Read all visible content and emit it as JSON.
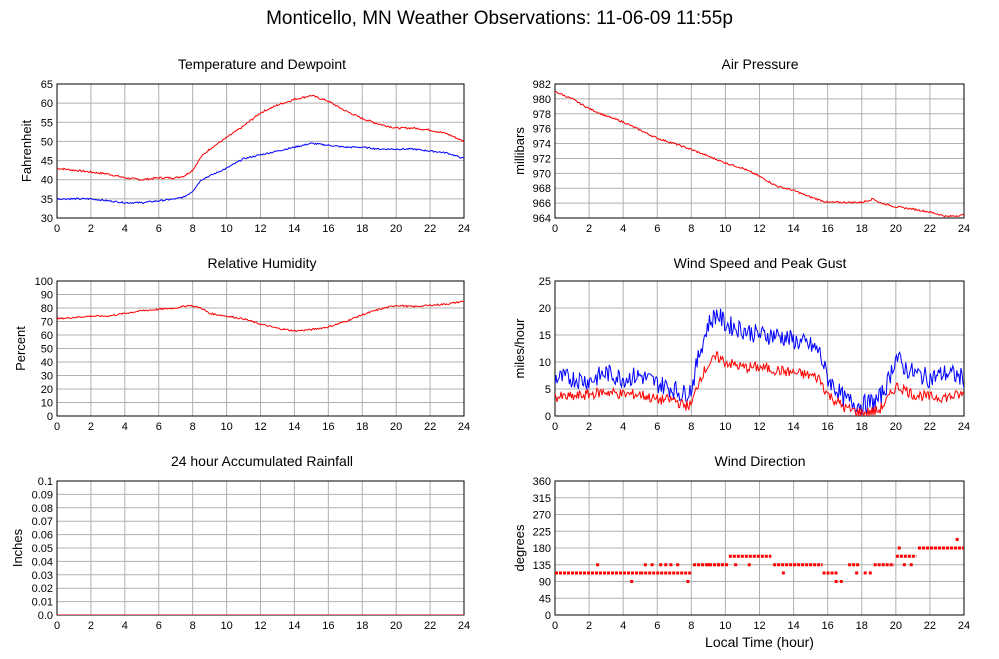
{
  "page": {
    "title": "Monticello, MN Weather Observations: 11-06-09 11:55p",
    "x_axis_caption": "Local Time (hour)"
  },
  "chart_data": [
    {
      "id": "temp",
      "type": "line",
      "title": "Temperature and Dewpoint",
      "ylabel": "Fahrenheit",
      "xlabel": "",
      "xlim": [
        0,
        24
      ],
      "ylim": [
        30,
        65
      ],
      "xticks": [
        0,
        2,
        4,
        6,
        8,
        10,
        12,
        14,
        16,
        18,
        20,
        22,
        24
      ],
      "yticks": [
        30,
        35,
        40,
        45,
        50,
        55,
        60,
        65
      ],
      "ytick_labels": [
        "30",
        "35",
        "40",
        "45",
        "50",
        "55",
        "60",
        "65"
      ],
      "grid": true,
      "series": [
        {
          "color": "#ff0000",
          "noise": 0.25,
          "x": [
            0,
            1,
            2,
            3,
            4,
            5,
            6,
            7,
            7.5,
            8,
            8.5,
            9,
            10,
            11,
            12,
            13,
            14,
            15,
            16,
            17,
            18,
            19,
            20,
            21,
            22,
            23,
            24
          ],
          "y": [
            43,
            42.5,
            42,
            41.5,
            40.5,
            40,
            40.5,
            40.5,
            41,
            42.5,
            46,
            48,
            51,
            54,
            57.5,
            59.5,
            61,
            62,
            60.5,
            58,
            56,
            54.5,
            53.5,
            53.5,
            53,
            52,
            50
          ]
        },
        {
          "color": "#0000ff",
          "noise": 0.2,
          "x": [
            0,
            1,
            2,
            3,
            4,
            5,
            6,
            7,
            7.5,
            8,
            8.5,
            9,
            10,
            11,
            12,
            13,
            14,
            15,
            16,
            17,
            18,
            19,
            20,
            21,
            22,
            23,
            24
          ],
          "y": [
            35,
            35,
            35,
            34.5,
            34,
            34,
            34.5,
            35,
            35.5,
            37,
            40,
            41,
            43,
            45.5,
            46.5,
            47.5,
            48.5,
            49.5,
            49,
            48.5,
            48.5,
            48,
            48,
            48,
            47.5,
            47,
            45.5
          ]
        }
      ]
    },
    {
      "id": "pressure",
      "type": "line",
      "title": "Air Pressure",
      "ylabel": "millibars",
      "xlabel": "",
      "xlim": [
        0,
        24
      ],
      "ylim": [
        964,
        982
      ],
      "xticks": [
        0,
        2,
        4,
        6,
        8,
        10,
        12,
        14,
        16,
        18,
        20,
        22,
        24
      ],
      "yticks": [
        964,
        966,
        968,
        970,
        972,
        974,
        976,
        978,
        980,
        982
      ],
      "ytick_labels": [
        "964",
        "966",
        "968",
        "970",
        "972",
        "974",
        "976",
        "978",
        "980",
        "982"
      ],
      "grid": true,
      "series": [
        {
          "color": "#ff0000",
          "noise": 0.12,
          "x": [
            0,
            1,
            2,
            3,
            4,
            5,
            6,
            7,
            8,
            9,
            10,
            11,
            12,
            13,
            14,
            15,
            16,
            17,
            18,
            18.7,
            19,
            20,
            21,
            22,
            23,
            24
          ],
          "y": [
            981,
            980,
            978.7,
            977.7,
            976.9,
            975.8,
            974.7,
            974,
            973.2,
            972.3,
            971.4,
            970.7,
            969.6,
            968.3,
            967.7,
            966.8,
            966.1,
            966.1,
            966.1,
            966.6,
            966.1,
            965.5,
            965.2,
            964.8,
            964.2,
            964.4
          ]
        }
      ]
    },
    {
      "id": "humidity",
      "type": "line",
      "title": "Relative Humidity",
      "ylabel": "Percent",
      "xlabel": "",
      "xlim": [
        0,
        24
      ],
      "ylim": [
        0,
        100
      ],
      "xticks": [
        0,
        2,
        4,
        6,
        8,
        10,
        12,
        14,
        16,
        18,
        20,
        22,
        24
      ],
      "yticks": [
        0,
        10,
        20,
        30,
        40,
        50,
        60,
        70,
        80,
        90,
        100
      ],
      "ytick_labels": [
        "0",
        "10",
        "20",
        "30",
        "40",
        "50",
        "60",
        "70",
        "80",
        "90",
        "100"
      ],
      "grid": true,
      "series": [
        {
          "color": "#ff0000",
          "noise": 0.6,
          "x": [
            0,
            1,
            2,
            3,
            4,
            5,
            6,
            7,
            7.8,
            8.5,
            9,
            10,
            11,
            12,
            13,
            14,
            15,
            16,
            17,
            18,
            19,
            20,
            21,
            22,
            23,
            24
          ],
          "y": [
            72,
            73,
            74,
            74,
            76,
            78,
            79,
            80,
            82,
            80,
            76,
            74,
            72,
            68,
            65,
            63,
            64,
            66,
            70,
            75,
            79,
            82,
            81,
            82,
            83,
            85
          ]
        }
      ]
    },
    {
      "id": "wind",
      "type": "line",
      "title": "Wind Speed and Peak Gust",
      "ylabel": "miles/hour",
      "xlabel": "",
      "xlim": [
        0,
        24
      ],
      "ylim": [
        0,
        25
      ],
      "xticks": [
        0,
        2,
        4,
        6,
        8,
        10,
        12,
        14,
        16,
        18,
        20,
        22,
        24
      ],
      "yticks": [
        0,
        5,
        10,
        15,
        20,
        25
      ],
      "ytick_labels": [
        "0",
        "5",
        "10",
        "15",
        "20",
        "25"
      ],
      "grid": true,
      "series": [
        {
          "color": "#0000ff",
          "noise": 1.8,
          "x": [
            0,
            1,
            2,
            3,
            4,
            5,
            6,
            7,
            7.5,
            8,
            8.5,
            9,
            9.5,
            10,
            11,
            12,
            13,
            14,
            15,
            15.5,
            16,
            17,
            18,
            19,
            19.5,
            20,
            20.5,
            21,
            22,
            23,
            24
          ],
          "y": [
            7,
            7,
            6.5,
            8,
            7,
            7.5,
            6,
            5,
            4,
            5,
            12,
            17,
            19,
            17,
            16,
            15,
            15,
            14,
            13,
            12,
            7,
            3,
            2,
            3,
            6,
            11,
            9,
            8,
            7,
            8,
            7
          ]
        },
        {
          "color": "#ff0000",
          "noise": 1.0,
          "x": [
            0,
            1,
            2,
            3,
            4,
            5,
            6,
            7,
            7.5,
            8,
            8.5,
            9,
            9.5,
            10,
            11,
            12,
            13,
            14,
            15,
            15.5,
            16,
            17,
            18,
            19,
            19.5,
            20,
            20.5,
            21,
            22,
            23,
            24
          ],
          "y": [
            3.5,
            3.5,
            4,
            4.5,
            4,
            4,
            3,
            3,
            2,
            2,
            7,
            9.5,
            11,
            10,
            9,
            9,
            8.5,
            8,
            7.5,
            7,
            4,
            1.5,
            0.5,
            1,
            3,
            5.5,
            5,
            4,
            3.5,
            3.5,
            4
          ]
        }
      ]
    },
    {
      "id": "rain",
      "type": "line",
      "title": "24 hour Accumulated Rainfall",
      "ylabel": "Inches",
      "xlabel": "",
      "xlim": [
        0,
        24
      ],
      "ylim": [
        0,
        0.1
      ],
      "xticks": [
        0,
        2,
        4,
        6,
        8,
        10,
        12,
        14,
        16,
        18,
        20,
        22,
        24
      ],
      "yticks": [
        0,
        0.01,
        0.02,
        0.03,
        0.04,
        0.05,
        0.06,
        0.07,
        0.08,
        0.09,
        0.1
      ],
      "ytick_labels": [
        "0.0",
        "0.01",
        "0.02",
        "0.03",
        "0.04",
        "0.05",
        "0.06",
        "0.07",
        "0.08",
        "0.09",
        "0.1"
      ],
      "grid": true,
      "series": [
        {
          "color": "#ff0000",
          "noise": 0,
          "x": [
            0,
            24
          ],
          "y": [
            0,
            0
          ]
        }
      ]
    },
    {
      "id": "direction",
      "type": "scatter",
      "title": "Wind Direction",
      "ylabel": "degrees",
      "xlabel": "Local Time (hour)",
      "xlim": [
        0,
        24
      ],
      "ylim": [
        0,
        360
      ],
      "xticks": [
        0,
        2,
        4,
        6,
        8,
        10,
        12,
        14,
        16,
        18,
        20,
        22,
        24
      ],
      "yticks": [
        0,
        45,
        90,
        135,
        180,
        225,
        270,
        315,
        360
      ],
      "ytick_labels": [
        "0",
        "45",
        "90",
        "135",
        "180",
        "225",
        "270",
        "315",
        "360"
      ],
      "grid": true,
      "segments": [
        {
          "color": "#ff0000",
          "x0": 0,
          "x1": 5.0,
          "y": 113
        },
        {
          "color": "#ff0000",
          "x0": 5.0,
          "x1": 8.0,
          "y": 113
        },
        {
          "color": "#ff0000",
          "x0": 8.1,
          "x1": 10.2,
          "y": 135
        },
        {
          "color": "#ff0000",
          "x0": 10.2,
          "x1": 12.7,
          "y": 158
        },
        {
          "color": "#ff0000",
          "x0": 12.8,
          "x1": 15.7,
          "y": 135
        },
        {
          "color": "#ff0000",
          "x0": 15.7,
          "x1": 16.6,
          "y": 113
        },
        {
          "color": "#ff0000",
          "x0": 17.2,
          "x1": 17.9,
          "y": 135
        },
        {
          "color": "#ff0000",
          "x0": 18.7,
          "x1": 19.9,
          "y": 135
        },
        {
          "color": "#ff0000",
          "x0": 20.0,
          "x1": 21.2,
          "y": 158
        },
        {
          "color": "#ff0000",
          "x0": 21.3,
          "x1": 24,
          "y": 180
        }
      ],
      "points": [
        {
          "x": 2.5,
          "y": 135
        },
        {
          "x": 4.5,
          "y": 90
        },
        {
          "x": 5.3,
          "y": 135
        },
        {
          "x": 5.7,
          "y": 135
        },
        {
          "x": 6.2,
          "y": 135
        },
        {
          "x": 6.5,
          "y": 135
        },
        {
          "x": 6.8,
          "y": 135
        },
        {
          "x": 7.8,
          "y": 90
        },
        {
          "x": 7.2,
          "y": 135
        },
        {
          "x": 9.0,
          "y": 135
        },
        {
          "x": 9.6,
          "y": 135
        },
        {
          "x": 10.6,
          "y": 135
        },
        {
          "x": 11.4,
          "y": 135
        },
        {
          "x": 13.4,
          "y": 113
        },
        {
          "x": 16.5,
          "y": 90
        },
        {
          "x": 16.8,
          "y": 90
        },
        {
          "x": 17.7,
          "y": 113
        },
        {
          "x": 18.2,
          "y": 113
        },
        {
          "x": 18.5,
          "y": 113
        },
        {
          "x": 20.2,
          "y": 180
        },
        {
          "x": 20.5,
          "y": 135
        },
        {
          "x": 20.9,
          "y": 135
        },
        {
          "x": 23.6,
          "y": 203
        }
      ]
    }
  ]
}
